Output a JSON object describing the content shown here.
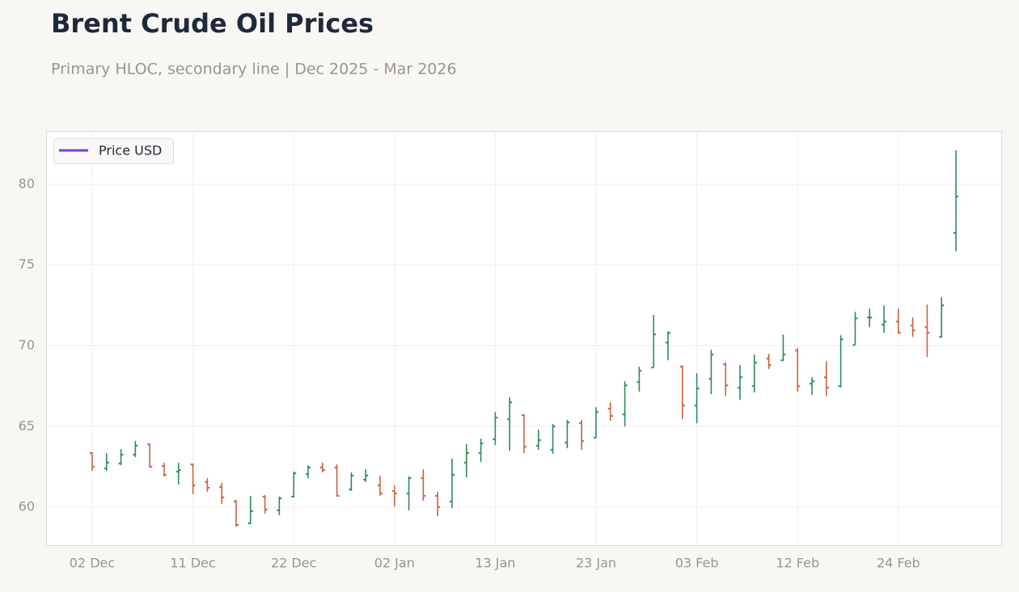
{
  "chart_data": {
    "type": "hloc",
    "title": "Brent Crude Oil Prices",
    "subtitle": "Primary HLOC, secondary line | Dec 2025 - Mar 2026",
    "categories": [
      "02 Dec",
      null,
      null,
      null,
      null,
      null,
      null,
      "11 Dec",
      null,
      null,
      null,
      null,
      null,
      null,
      "22 Dec",
      null,
      null,
      null,
      null,
      null,
      null,
      "02 Jan",
      null,
      null,
      null,
      null,
      null,
      null,
      "13 Jan",
      null,
      null,
      null,
      null,
      null,
      null,
      "23 Jan",
      null,
      null,
      null,
      null,
      null,
      null,
      "03 Feb",
      null,
      null,
      null,
      null,
      null,
      null,
      "12 Feb",
      null,
      null,
      null,
      null,
      null,
      null,
      "24 Feb",
      null,
      null,
      null,
      null
    ],
    "open": [
      63.35,
      62.4,
      62.7,
      63.25,
      63.9,
      62.55,
      62.2,
      62.65,
      61.55,
      61.25,
      60.35,
      59.0,
      60.65,
      59.8,
      60.65,
      62.05,
      62.45,
      62.45,
      61.1,
      61.7,
      61.35,
      61.0,
      60.85,
      61.8,
      60.7,
      60.35,
      62.75,
      63.35,
      64.2,
      65.45,
      65.7,
      63.8,
      63.55,
      64.0,
      65.2,
      64.3,
      66.1,
      65.75,
      67.75,
      68.65,
      70.2,
      68.7,
      66.3,
      67.95,
      68.85,
      67.4,
      67.5,
      69.2,
      69.1,
      69.7,
      67.65,
      68.05,
      67.5,
      70.05,
      71.75,
      71.3,
      71.5,
      71.25,
      71.15,
      70.55,
      76.99
    ],
    "high": [
      63.4,
      63.35,
      63.6,
      64.1,
      63.95,
      62.75,
      62.75,
      62.7,
      61.8,
      61.5,
      60.45,
      60.7,
      60.75,
      60.65,
      62.2,
      62.6,
      62.75,
      62.65,
      62.15,
      62.35,
      61.95,
      61.35,
      61.9,
      62.35,
      60.95,
      63.0,
      63.9,
      64.25,
      65.9,
      66.8,
      65.75,
      64.8,
      65.15,
      65.4,
      65.4,
      66.2,
      66.5,
      67.8,
      68.7,
      71.9,
      70.9,
      68.8,
      68.3,
      69.75,
      68.95,
      68.8,
      69.45,
      69.5,
      70.7,
      69.85,
      68.05,
      69.05,
      70.65,
      72.1,
      72.3,
      72.5,
      72.3,
      71.75,
      72.55,
      73.0,
      82.1
    ],
    "low": [
      62.25,
      62.25,
      62.6,
      63.1,
      62.45,
      61.9,
      61.4,
      60.8,
      60.95,
      60.2,
      58.8,
      58.95,
      59.6,
      59.5,
      60.6,
      61.8,
      62.15,
      60.65,
      61.0,
      61.55,
      60.7,
      60.05,
      59.8,
      60.4,
      59.45,
      59.95,
      61.85,
      62.8,
      63.85,
      63.5,
      63.35,
      63.55,
      63.3,
      63.65,
      63.55,
      64.3,
      65.35,
      65.0,
      67.15,
      68.65,
      69.1,
      65.45,
      65.2,
      67.0,
      66.9,
      66.65,
      67.1,
      68.55,
      69.05,
      67.15,
      66.95,
      66.9,
      67.4,
      70.05,
      71.15,
      70.8,
      70.75,
      70.55,
      69.3,
      70.5,
      75.85
    ],
    "close": [
      62.5,
      62.75,
      63.25,
      63.8,
      62.5,
      62.0,
      62.3,
      61.35,
      61.2,
      60.6,
      58.9,
      59.75,
      59.85,
      60.55,
      62.1,
      62.45,
      62.3,
      60.7,
      61.95,
      61.95,
      60.85,
      60.85,
      61.8,
      60.7,
      60.0,
      62.0,
      63.35,
      63.95,
      65.55,
      66.5,
      63.75,
      64.15,
      65.0,
      65.25,
      64.1,
      65.9,
      65.65,
      67.55,
      68.45,
      70.7,
      70.8,
      66.3,
      67.35,
      69.45,
      67.55,
      68.05,
      68.95,
      68.8,
      69.45,
      67.5,
      67.8,
      67.4,
      70.4,
      71.7,
      71.75,
      71.5,
      70.8,
      70.95,
      70.8,
      72.5,
      79.25
    ],
    "up_color": "#2e8b57",
    "down_color": "#c8623f",
    "legend": {
      "name": "Price USD",
      "color": "#7c3aed",
      "position": "upper left"
    },
    "ylim": [
      57.6,
      83.3
    ],
    "yticks": [
      60,
      65,
      70,
      75,
      80
    ],
    "grid": true
  }
}
